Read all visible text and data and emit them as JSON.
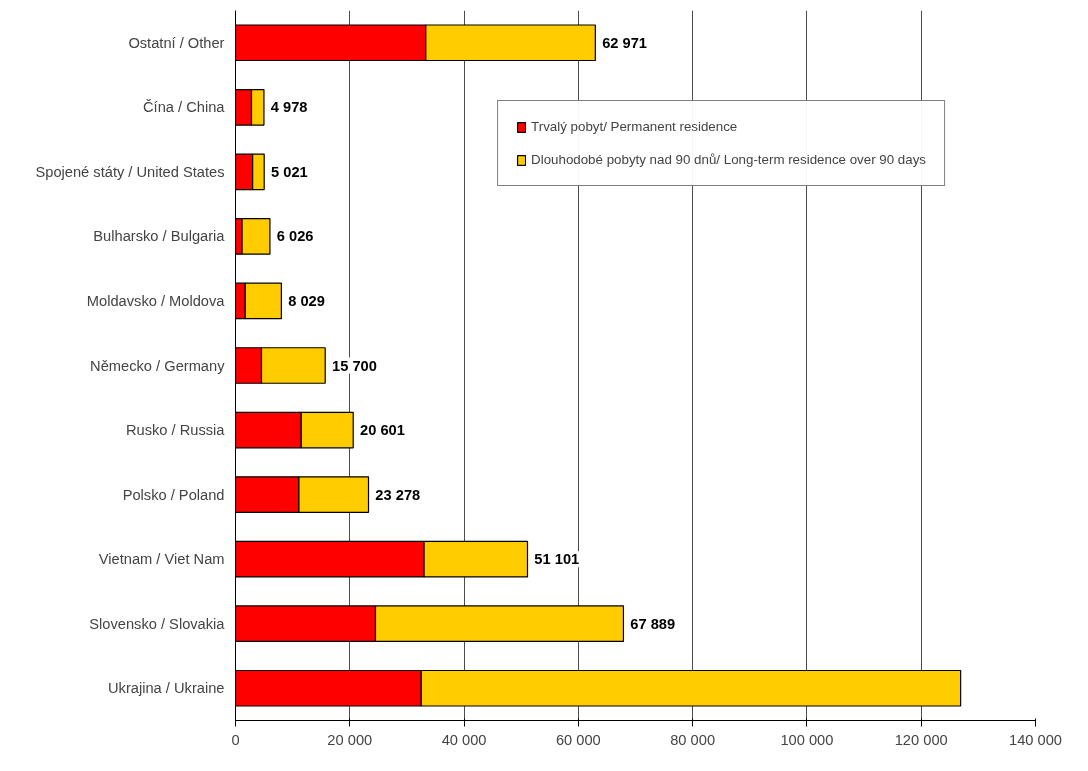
{
  "chart_data": {
    "type": "bar",
    "orientation": "horizontal",
    "stacked": true,
    "categories": [
      "Ostatní / Other",
      "Čína / China",
      "Spojené státy / United States",
      "Bulharsko / Bulgaria",
      "Moldavsko / Moldova",
      "Německo / Germany",
      "Rusko / Russia",
      "Polsko / Poland",
      "Vietnam / Viet Nam",
      "Slovensko / Slovakia",
      "Ukrajina / Ukraine"
    ],
    "series": [
      {
        "name": "Trvalý pobyt/ Permanent residence",
        "color": "#ff0000",
        "values": [
          33300,
          2800,
          3000,
          1150,
          1700,
          4550,
          11500,
          11100,
          33000,
          24500,
          32500
        ]
      },
      {
        "name": "Dlouhodobé pobyty nad 90 dnů/ Long-term residence over 90 days",
        "color": "#ffcc00",
        "values": [
          29671,
          2178,
          2021,
          4876,
          6329,
          11150,
          9101,
          12178,
          18101,
          43389,
          94400
        ]
      }
    ],
    "totals": [
      "62 971",
      "4 978",
      "5 021",
      "6 026",
      "8 029",
      "15 700",
      "20 601",
      "23 278",
      "51 101",
      "67 889",
      null
    ],
    "xlim": [
      0,
      140000
    ],
    "xticks": [
      0,
      {
        "value": 20000,
        "label": "20 000"
      },
      {
        "value": 40000,
        "label": "40 000"
      },
      {
        "value": 60000,
        "label": "60 000"
      },
      {
        "value": 80000,
        "label": "80 000"
      },
      {
        "value": 100000,
        "label": "100 000"
      },
      {
        "value": 120000,
        "label": "120 000"
      },
      {
        "value": 140000,
        "label": "140 000"
      }
    ],
    "grid": "x",
    "legend": "top right"
  }
}
